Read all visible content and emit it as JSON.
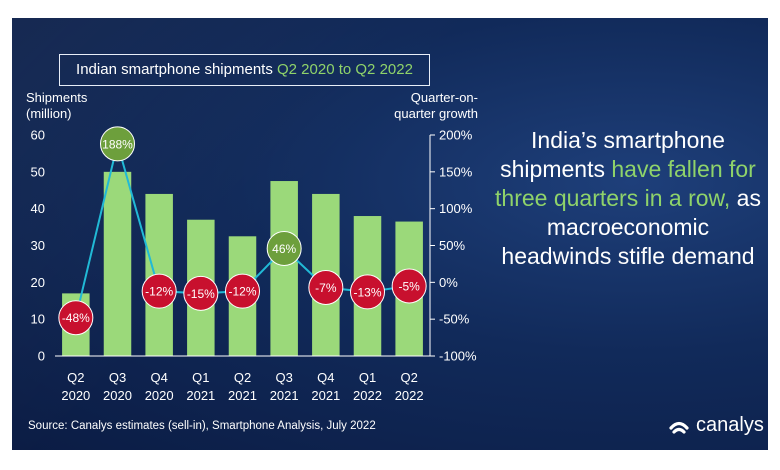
{
  "title": {
    "prefix": "Indian smartphone shipments ",
    "accent": "Q2 2020 to Q2 2022"
  },
  "left_axis_title": [
    "Shipments",
    "(million)"
  ],
  "right_axis_title": [
    "Quarter-on-",
    "quarter growth"
  ],
  "headline": {
    "part1": "India’s smartphone shipments ",
    "highlight": "have fallen for three quarters in a row,",
    "part2": " as macroeconomic headwinds stifle demand"
  },
  "source": "Source: Canalys estimates (sell-in), Smartphone Analysis, July 2022",
  "logo_text": "canalys",
  "colors": {
    "bar": "#9bd97a",
    "line": "#21b9d6",
    "negative_bubble": "#c8102e",
    "positive_bubble": "#6d9f3c",
    "accent_text": "#8fd36a"
  },
  "chart_data": {
    "type": "bar",
    "categories": [
      [
        "Q2",
        "2020"
      ],
      [
        "Q3",
        "2020"
      ],
      [
        "Q4",
        "2020"
      ],
      [
        "Q1",
        "2021"
      ],
      [
        "Q2",
        "2021"
      ],
      [
        "Q3",
        "2021"
      ],
      [
        "Q4",
        "2021"
      ],
      [
        "Q1",
        "2022"
      ],
      [
        "Q2",
        "2022"
      ]
    ],
    "series": [
      {
        "values": [
          17,
          50,
          44,
          37,
          32.5,
          47.5,
          44,
          38,
          36.5
        ]
      },
      {
        "type": "line",
        "axis": "right",
        "values": [
          -48,
          188,
          -12,
          -15,
          -12,
          46,
          -7,
          -13,
          -5
        ]
      }
    ],
    "growth_labels": [
      "-48%",
      "188%",
      "-12%",
      "-15%",
      "-12%",
      "46%",
      "-7%",
      "-13%",
      "-5%"
    ],
    "yticks": [
      "0",
      "10",
      "20",
      "30",
      "40",
      "50",
      "60"
    ],
    "y2ticks": [
      "-100%",
      "-50%",
      "0%",
      "50%",
      "100%",
      "150%",
      "200%"
    ],
    "ylim": [
      0,
      60
    ],
    "y2lim": [
      -100,
      200
    ],
    "grid": false
  }
}
